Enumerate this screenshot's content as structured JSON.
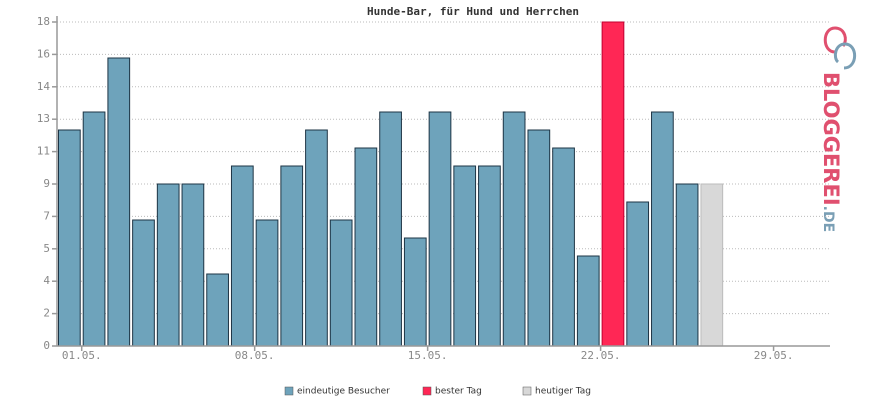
{
  "chart_data": {
    "type": "bar",
    "title": "Hunde-Bar, für Hund und Herrchen",
    "categories": [
      "01.05.",
      null,
      null,
      null,
      null,
      null,
      null,
      "08.05.",
      null,
      null,
      null,
      null,
      null,
      null,
      "15.05.",
      null,
      null,
      null,
      null,
      null,
      null,
      "22.05.",
      null,
      null,
      null,
      null,
      null,
      null,
      "29.05.",
      null,
      null
    ],
    "series": [
      {
        "name": "eindeutige Besucher",
        "color": "#6ea3bb",
        "values": [
          12,
          13,
          16,
          7,
          9,
          9,
          4,
          10,
          7,
          10,
          12,
          7,
          11,
          13,
          6,
          13,
          10,
          10,
          13,
          12,
          11,
          5,
          null,
          8,
          13,
          9,
          null,
          null,
          null,
          null,
          null
        ]
      },
      {
        "name": "bester Tag",
        "color": "#ff2755",
        "values": [
          null,
          null,
          null,
          null,
          null,
          null,
          null,
          null,
          null,
          null,
          null,
          null,
          null,
          null,
          null,
          null,
          null,
          null,
          null,
          null,
          null,
          null,
          18,
          null,
          null,
          null,
          null,
          null,
          null,
          null,
          null
        ]
      },
      {
        "name": "heutiger Tag",
        "color": "#d8d8d8",
        "values": [
          null,
          null,
          null,
          null,
          null,
          null,
          null,
          null,
          null,
          null,
          null,
          null,
          null,
          null,
          null,
          null,
          null,
          null,
          null,
          null,
          null,
          null,
          null,
          null,
          null,
          null,
          9,
          null,
          null,
          null,
          null
        ]
      }
    ],
    "ylim": [
      0,
      18
    ],
    "yticks": [
      0,
      {
        "value": 1.8,
        "label": "2"
      },
      {
        "value": 3.6,
        "label": "4"
      },
      {
        "value": 5.4,
        "label": "5"
      },
      {
        "value": 7.2,
        "label": "7"
      },
      9,
      {
        "value": 10.8,
        "label": "11"
      },
      {
        "value": 12.6,
        "label": "13"
      },
      {
        "value": 14.4,
        "label": "14"
      },
      {
        "value": 16.2,
        "label": "16"
      },
      18
    ],
    "grid": true,
    "legend": "bottom",
    "watermark": [
      "BLOGGEREI",
      ".DE"
    ]
  }
}
